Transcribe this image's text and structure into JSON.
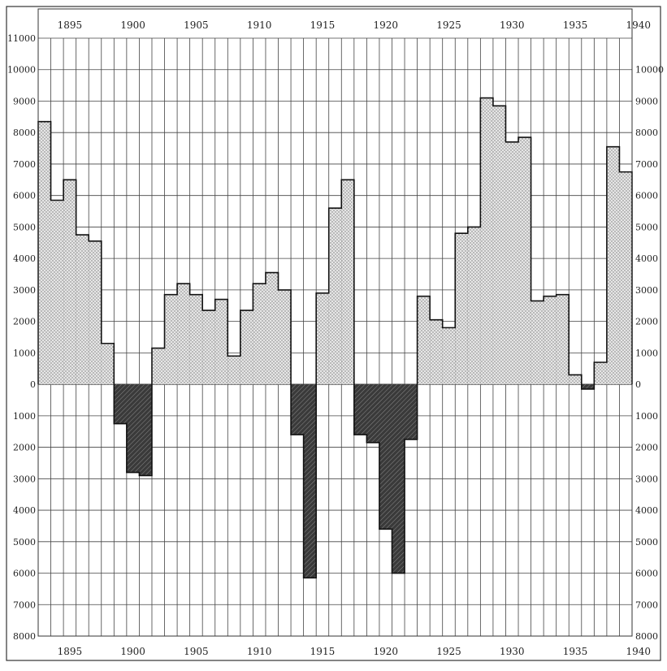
{
  "chart_data": {
    "type": "bar",
    "title": "",
    "xlabel": "",
    "ylabel": "",
    "x": [
      1893,
      1894,
      1895,
      1896,
      1897,
      1898,
      1899,
      1900,
      1901,
      1902,
      1903,
      1904,
      1905,
      1906,
      1907,
      1908,
      1909,
      1910,
      1911,
      1912,
      1913,
      1914,
      1915,
      1916,
      1917,
      1918,
      1919,
      1920,
      1921,
      1922,
      1923,
      1924,
      1925,
      1926,
      1927,
      1928,
      1929,
      1930,
      1931,
      1932,
      1933,
      1934,
      1935,
      1936,
      1937,
      1938,
      1939
    ],
    "values": [
      8350,
      5850,
      6500,
      4750,
      4550,
      1300,
      -1250,
      -2800,
      -2900,
      1150,
      2850,
      3200,
      2850,
      2350,
      2700,
      900,
      2350,
      3200,
      3550,
      3000,
      -1600,
      -6150,
      2900,
      5600,
      6500,
      -1600,
      -1850,
      -4600,
      -6000,
      -1750,
      2800,
      2050,
      1800,
      4800,
      5000,
      9100,
      8850,
      7700,
      7850,
      2650,
      2800,
      2850,
      300,
      -150,
      700,
      7550,
      6750
    ],
    "xlim": [
      1893,
      1940
    ],
    "ylim": [
      -8000,
      11000
    ],
    "x_ticks": [
      "1895",
      "1900",
      "1905",
      "1910",
      "1915",
      "1920",
      "1925",
      "1930",
      "1935",
      "1940"
    ],
    "y_ticks_top": [
      "11000",
      "10000",
      "9000",
      "8000",
      "7000",
      "6000",
      "5000",
      "4000",
      "3000",
      "2000",
      "1000",
      "0"
    ],
    "y_ticks_bottom": [
      "1000",
      "2000",
      "3000",
      "4000",
      "5000",
      "6000",
      "7000",
      "8000"
    ],
    "positive_fill": "#d9d9d9",
    "negative_fill": "#4a4a4a",
    "grid": true
  }
}
